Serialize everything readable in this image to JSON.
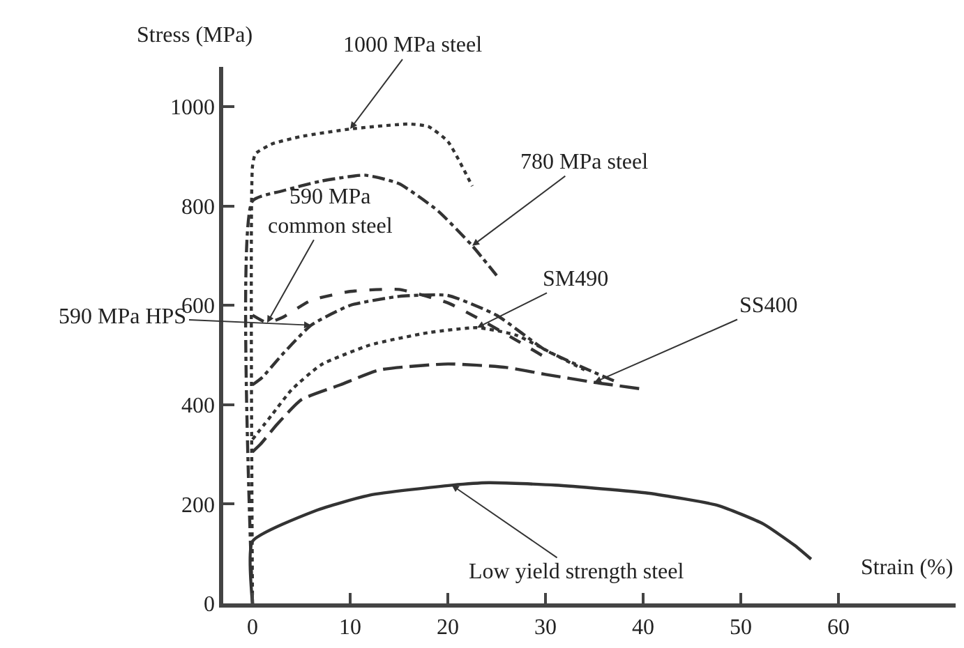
{
  "chart_data": {
    "type": "line",
    "xlabel": "Strain (%)",
    "ylabel": "Stress (MPa)",
    "xlim": [
      -3,
      72
    ],
    "ylim": [
      0,
      1080
    ],
    "xticks": [
      0,
      10,
      20,
      30,
      40,
      50,
      60
    ],
    "yticks": [
      0,
      200,
      400,
      600,
      800,
      1000
    ],
    "grid": false,
    "legend": false,
    "marker": "none",
    "series": [
      {
        "name": "1000 MPa steel",
        "color": "#333333",
        "line_style": "dotted",
        "x": [
          0,
          0,
          0.3,
          2,
          5,
          10,
          16,
          18,
          20,
          22.5
        ],
        "values": [
          0,
          880,
          905,
          925,
          940,
          955,
          965,
          960,
          930,
          840
        ]
      },
      {
        "name": "780 MPa steel",
        "color": "#333333",
        "line_style": "dashdot",
        "x": [
          0,
          0,
          3,
          7,
          11.5,
          15,
          19,
          22.5,
          25
        ],
        "values": [
          0,
          810,
          830,
          850,
          862,
          845,
          790,
          720,
          660
        ]
      },
      {
        "name": "590 MPa\ncommon steel",
        "color": "#333333",
        "line_style": "dashed",
        "x": [
          0,
          1.5,
          3,
          6,
          10,
          15,
          20,
          23,
          27,
          30
        ],
        "values": [
          580,
          565,
          575,
          610,
          628,
          632,
          605,
          575,
          530,
          495
        ]
      },
      {
        "name": "SM490",
        "color": "#333333",
        "line_style": "dotted",
        "x": [
          0,
          2,
          4,
          7,
          12,
          18,
          23,
          27,
          31,
          34
        ],
        "values": [
          330,
          380,
          430,
          480,
          520,
          545,
          555,
          540,
          500,
          470
        ]
      },
      {
        "name": "590 MPa HPS",
        "color": "#333333",
        "line_style": "dashdot",
        "x": [
          0,
          1,
          3,
          6,
          10,
          15,
          20,
          25,
          30,
          35,
          37
        ],
        "values": [
          440,
          455,
          500,
          560,
          600,
          618,
          620,
          580,
          510,
          465,
          448
        ]
      },
      {
        "name": "SS400",
        "color": "#333333",
        "line_style": "longdash",
        "x": [
          0,
          0.8,
          2.5,
          5,
          9,
          13,
          20,
          26,
          30,
          35,
          39.7
        ],
        "values": [
          305,
          320,
          360,
          410,
          440,
          470,
          482,
          475,
          461,
          445,
          432
        ]
      },
      {
        "name": "Low yield strength steel",
        "color": "#333333",
        "line_style": "solid",
        "x": [
          0,
          0,
          6.5,
          12,
          20.4,
          24.2,
          31,
          40.5,
          47.7,
          52.3,
          55.5,
          57.2
        ],
        "values": [
          0,
          125,
          187,
          218,
          238,
          243,
          238,
          222,
          197,
          160,
          117,
          89
        ]
      }
    ]
  }
}
